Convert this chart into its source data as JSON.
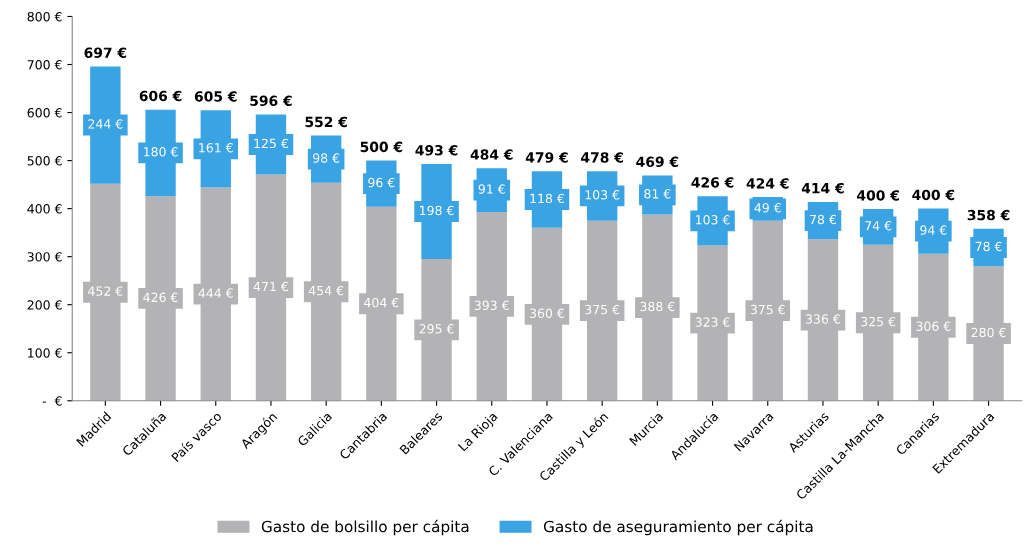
{
  "chart_data": {
    "type": "bar",
    "stacked": true,
    "categories": [
      "Madrid",
      "Cataluña",
      "País vasco",
      "Aragón",
      "Galicia",
      "Cantabria",
      "Baleares",
      "La Rioja",
      "C. Valenciana",
      "Castilla y León",
      "Murcia",
      "Andalucía",
      "Navarra",
      "Asturias",
      "Castilla La-Mancha",
      "Canarias",
      "Extremadura"
    ],
    "series": [
      {
        "name": "Gasto de bolsillo per cápita",
        "color": "#b3b3b5",
        "values": [
          452,
          426,
          444,
          471,
          454,
          404,
          295,
          393,
          360,
          375,
          388,
          323,
          375,
          336,
          325,
          306,
          280
        ],
        "value_labels": [
          "452 €",
          "426 €",
          "444 €",
          "471 €",
          "454 €",
          "404 €",
          "295 €",
          "393 €",
          "360 €",
          "375 €",
          "388 €",
          "323 €",
          "375 €",
          "336 €",
          "325 €",
          "306 €",
          "280 €"
        ]
      },
      {
        "name": "Gasto de aseguramiento per cápita",
        "color": "#3aa3e3",
        "values": [
          244,
          180,
          161,
          125,
          98,
          96,
          198,
          91,
          118,
          103,
          81,
          103,
          49,
          78,
          74,
          94,
          78
        ],
        "value_labels": [
          "244 €",
          "180 €",
          "161 €",
          "125 €",
          "98 €",
          "96 €",
          "198 €",
          "91 €",
          "118 €",
          "103 €",
          "81 €",
          "103 €",
          "49 €",
          "78 €",
          "74 €",
          "94 €",
          "78 €"
        ]
      }
    ],
    "totals": [
      "697 €",
      "606 €",
      "605 €",
      "596 €",
      "552 €",
      "500 €",
      "493 €",
      "484 €",
      "479 €",
      "478 €",
      "469 €",
      "426 €",
      "424 €",
      "414 €",
      "400 €",
      "400 €",
      "358 €"
    ],
    "ylim": [
      0,
      800
    ],
    "yticks": [
      {
        "value": 0,
        "label": "-  €"
      },
      {
        "value": 100,
        "label": "100 €"
      },
      {
        "value": 200,
        "label": "200 €"
      },
      {
        "value": 300,
        "label": "300 €"
      },
      {
        "value": 400,
        "label": "400 €"
      },
      {
        "value": 500,
        "label": "500 €"
      },
      {
        "value": 600,
        "label": "600 €"
      },
      {
        "value": 700,
        "label": "700 €"
      },
      {
        "value": 800,
        "label": "800 €"
      }
    ],
    "grid": false,
    "legend": "bottom"
  }
}
